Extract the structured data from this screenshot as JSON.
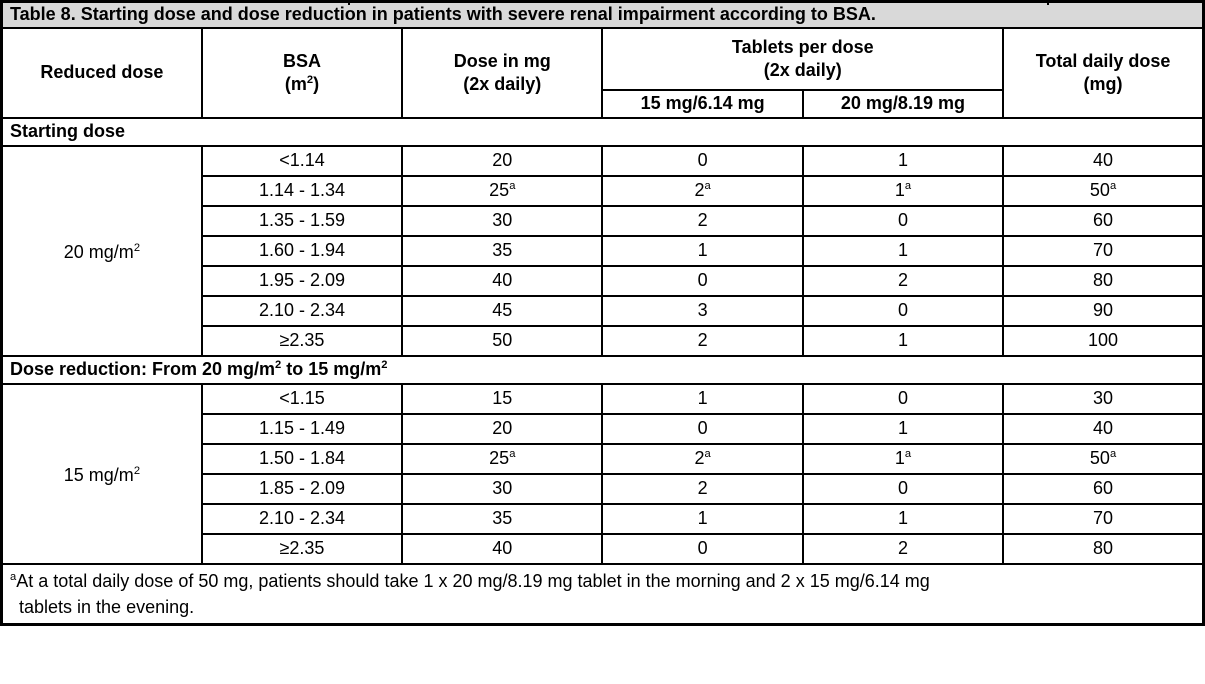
{
  "title": "Table 8. Starting dose and dose reduction in patients with severe renal impairment according to BSA.",
  "columns": {
    "reduced_dose": "Reduced dose",
    "bsa": "BSA\n(m^2)",
    "dose_mg": "Dose in mg\n(2x daily)",
    "tablets_per_dose": "Tablets per dose\n(2x daily)",
    "tablet_15": "15 mg/6.14 mg",
    "tablet_20": "20 mg/8.19 mg",
    "total_daily": "Total daily dose\n(mg)"
  },
  "sections": [
    {
      "heading": "Starting dose",
      "reduced_dose": "20 mg/m^2",
      "rows": [
        {
          "bsa": "<1.14",
          "dose": "20",
          "tab15": "0",
          "tab20": "1",
          "total": "40"
        },
        {
          "bsa": "1.14 - 1.34",
          "dose": "25^a",
          "tab15": "2^a",
          "tab20": "1^a",
          "total": "50^a"
        },
        {
          "bsa": "1.35 - 1.59",
          "dose": "30",
          "tab15": "2",
          "tab20": "0",
          "total": "60"
        },
        {
          "bsa": "1.60 - 1.94",
          "dose": "35",
          "tab15": "1",
          "tab20": "1",
          "total": "70"
        },
        {
          "bsa": "1.95 - 2.09",
          "dose": "40",
          "tab15": "0",
          "tab20": "2",
          "total": "80"
        },
        {
          "bsa": "2.10 - 2.34",
          "dose": "45",
          "tab15": "3",
          "tab20": "0",
          "total": "90"
        },
        {
          "bsa": "≥2.35",
          "dose": "50",
          "tab15": "2",
          "tab20": "1",
          "total": "100"
        }
      ]
    },
    {
      "heading": "Dose reduction: From 20 mg/m^2 to 15 mg/m^2",
      "reduced_dose": "15 mg/m^2",
      "rows": [
        {
          "bsa": "<1.15",
          "dose": "15",
          "tab15": "1",
          "tab20": "0",
          "total": "30"
        },
        {
          "bsa": "1.15 - 1.49",
          "dose": "20",
          "tab15": "0",
          "tab20": "1",
          "total": "40"
        },
        {
          "bsa": "1.50 - 1.84",
          "dose": "25^a",
          "tab15": "2^a",
          "tab20": "1^a",
          "total": "50^a"
        },
        {
          "bsa": "1.85 - 2.09",
          "dose": "30",
          "tab15": "2",
          "tab20": "0",
          "total": "60"
        },
        {
          "bsa": "2.10 - 2.34",
          "dose": "35",
          "tab15": "1",
          "tab20": "1",
          "total": "70"
        },
        {
          "bsa": "≥2.35",
          "dose": "40",
          "tab15": "0",
          "tab20": "2",
          "total": "80"
        }
      ]
    }
  ],
  "footnote": {
    "marker": "a",
    "line1": "At a total daily dose of 50 mg, patients should take 1 x 20 mg/8.19 mg tablet in the morning and 2 x 15 mg/6.14 mg",
    "line2": "tablets in the evening."
  },
  "colors": {
    "title_background": "#d9d9d9",
    "border": "#000000",
    "text": "#000000"
  }
}
